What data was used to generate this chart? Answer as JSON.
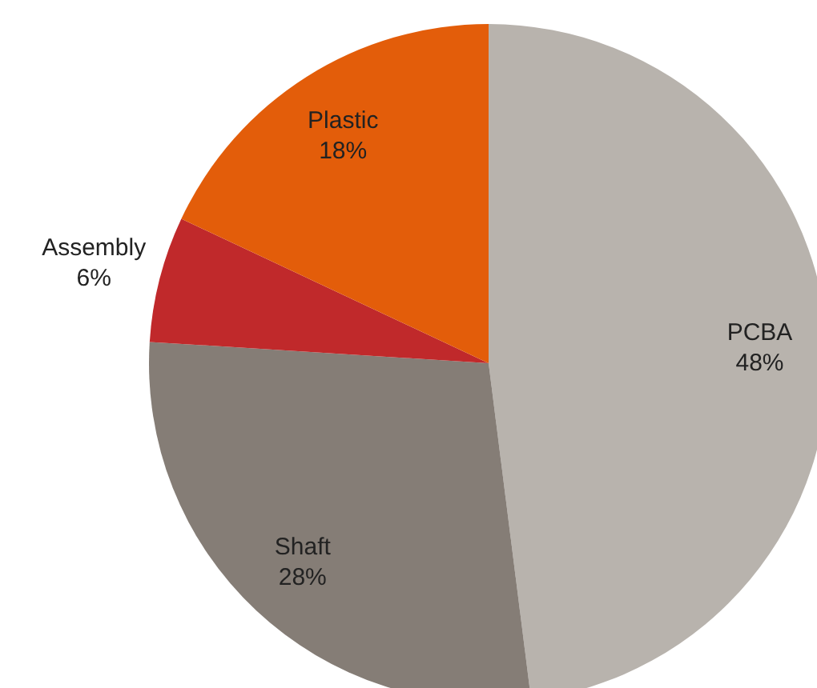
{
  "chart_data": {
    "type": "pie",
    "categories": [
      "PCBA",
      "Shaft",
      "Assembly",
      "Plastic"
    ],
    "values": [
      48,
      28,
      6,
      18
    ],
    "colors": [
      "#b8b3ad",
      "#857d76",
      "#c0292b",
      "#e35d0a"
    ],
    "value_labels": [
      "48%",
      "28%",
      "6%",
      "18%"
    ]
  }
}
